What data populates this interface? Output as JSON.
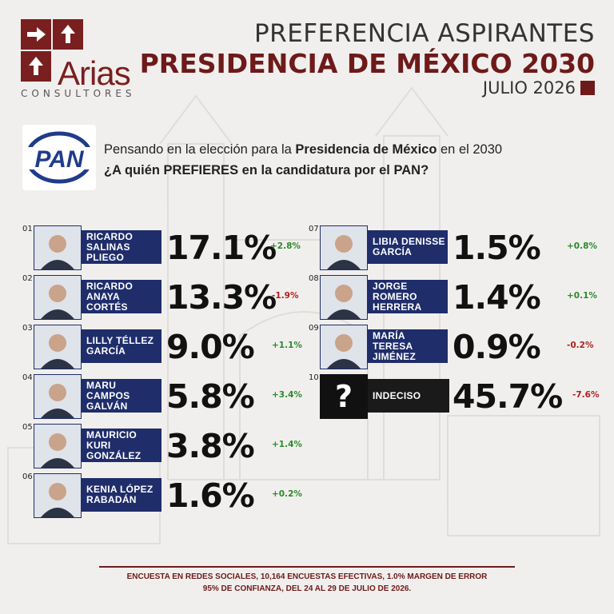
{
  "brand": {
    "name": "Arias",
    "subtitle": "CONSULTORES",
    "color": "#7a1f1f"
  },
  "header": {
    "line1": "PREFERENCIA ASPIRANTES",
    "line2": "PRESIDENCIA DE MÉXICO 2030",
    "date": "JULIO 2026"
  },
  "party": {
    "logo_text": "PAN",
    "color": "#1f3c8a"
  },
  "question": {
    "intro_pre": "Pensando en la elección para la ",
    "intro_bold": "Presidencia de México",
    "intro_post": " en el 2030",
    "text": "¿A quién PREFIERES en la candidatura por el PAN?"
  },
  "chart_data": {
    "type": "bar",
    "title": "PRESIDENCIA DE MÉXICO 2030",
    "categories": [
      "RICARDO SALINAS PLIEGO",
      "RICARDO ANAYA CORTÉS",
      "LILLY TÉLLEZ GARCÍA",
      "MARU CAMPOS GALVÁN",
      "MAURICIO KURI GONZÁLEZ",
      "KENIA LÓPEZ RABADÁN",
      "LIBIA DENISSE GARCÍA",
      "JORGE ROMERO HERRERA",
      "MARÍA TERESA JIMÉNEZ",
      "INDECISO"
    ],
    "values": [
      17.1,
      13.3,
      9.0,
      5.8,
      3.8,
      1.6,
      1.5,
      1.4,
      0.9,
      45.7
    ],
    "changes": [
      2.8,
      -1.9,
      1.1,
      3.4,
      1.4,
      0.2,
      0.8,
      0.1,
      -0.2,
      -7.6
    ],
    "unit": "%"
  },
  "candidates": [
    {
      "num": "01",
      "name": "RICARDO\nSALINAS\nPLIEGO",
      "value": "17.1%",
      "change": "+2.8%"
    },
    {
      "num": "02",
      "name": "RICARDO\nANAYA\nCORTÉS",
      "value": "13.3%",
      "change": "-1.9%"
    },
    {
      "num": "03",
      "name": "LILLY TÉLLEZ\nGARCÍA",
      "value": "9.0%",
      "change": "+1.1%"
    },
    {
      "num": "04",
      "name": "MARU\nCAMPOS\nGALVÁN",
      "value": "5.8%",
      "change": "+3.4%"
    },
    {
      "num": "05",
      "name": "MAURICIO\nKURI\nGONZÁLEZ",
      "value": "3.8%",
      "change": "+1.4%"
    },
    {
      "num": "06",
      "name": "KENIA LÓPEZ\nRABADÁN",
      "value": "1.6%",
      "change": "+0.2%"
    },
    {
      "num": "07",
      "name": "LIBIA DENISSE\nGARCÍA",
      "value": "1.5%",
      "change": "+0.8%"
    },
    {
      "num": "08",
      "name": "JORGE\nROMERO\nHERRERA",
      "value": "1.4%",
      "change": "+0.1%"
    },
    {
      "num": "09",
      "name": "MARÍA TERESA\nJIMÉNEZ",
      "value": "0.9%",
      "change": "-0.2%"
    },
    {
      "num": "10",
      "name": "INDECISO",
      "value": "45.7%",
      "change": "-7.6%",
      "photo_symbol": "?"
    }
  ],
  "footer": {
    "line1": "ENCUESTA EN REDES SOCIALES, 10,164 ENCUESTAS EFECTIVAS, 1.0% MARGEN DE ERROR",
    "line2": "95% DE CONFIANZA, DEL 24 AL 29 DE JULIO DE 2026."
  }
}
